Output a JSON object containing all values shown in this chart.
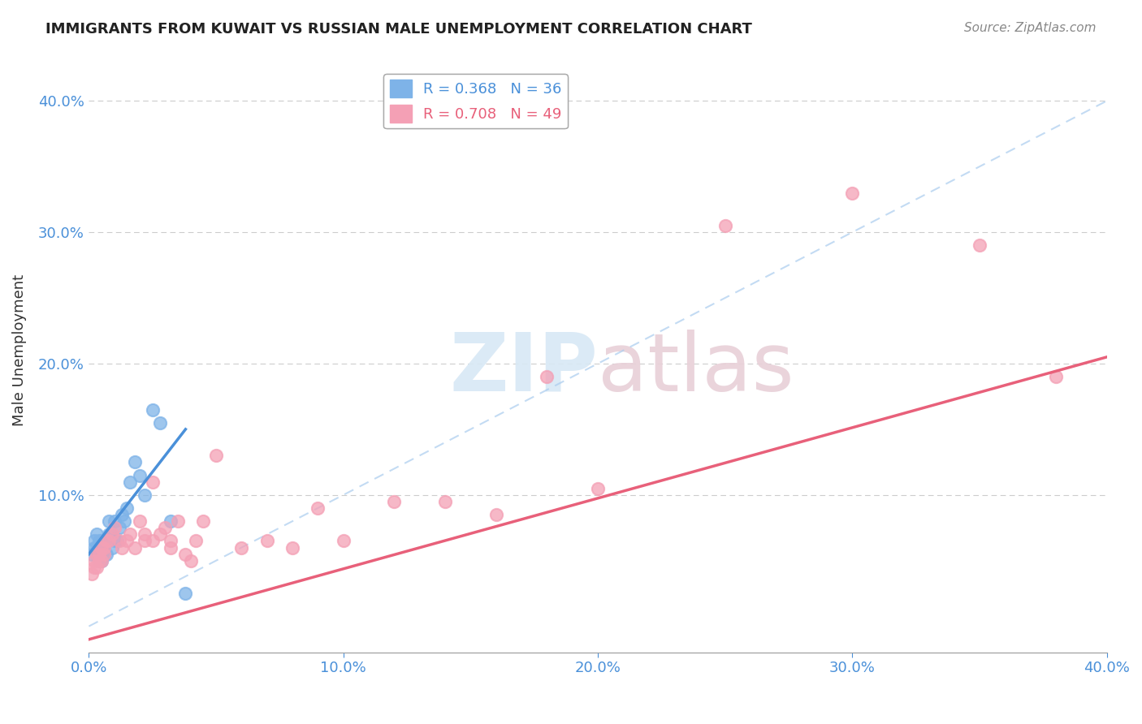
{
  "title": "IMMIGRANTS FROM KUWAIT VS RUSSIAN MALE UNEMPLOYMENT CORRELATION CHART",
  "source": "Source: ZipAtlas.com",
  "xlabel": "",
  "ylabel": "Male Unemployment",
  "xlim": [
    0.0,
    0.4
  ],
  "ylim": [
    -0.02,
    0.44
  ],
  "xticks": [
    0.0,
    0.1,
    0.2,
    0.3,
    0.4
  ],
  "yticks": [
    0.0,
    0.1,
    0.2,
    0.3,
    0.4
  ],
  "xtick_labels": [
    "0.0%",
    "10.0%",
    "20.0%",
    "30.0%",
    "40.0%"
  ],
  "ytick_labels": [
    "",
    "10.0%",
    "20.0%",
    "30.0%",
    "40.0%"
  ],
  "legend_entry1": "R = 0.368   N = 36",
  "legend_entry2": "R = 0.708   N = 49",
  "blue_color": "#7EB3E8",
  "pink_color": "#F4A0B5",
  "blue_line_color": "#4A90D9",
  "pink_line_color": "#E8607A",
  "watermark_zip": "ZIP",
  "watermark_atlas": "atlas",
  "kuwait_points_x": [
    0.001,
    0.002,
    0.002,
    0.003,
    0.003,
    0.003,
    0.004,
    0.004,
    0.004,
    0.005,
    0.005,
    0.005,
    0.005,
    0.006,
    0.006,
    0.007,
    0.007,
    0.008,
    0.008,
    0.009,
    0.009,
    0.01,
    0.01,
    0.011,
    0.012,
    0.013,
    0.014,
    0.015,
    0.016,
    0.018,
    0.02,
    0.022,
    0.025,
    0.028,
    0.032,
    0.038
  ],
  "kuwait_points_y": [
    0.055,
    0.06,
    0.065,
    0.055,
    0.06,
    0.07,
    0.05,
    0.055,
    0.065,
    0.05,
    0.055,
    0.06,
    0.065,
    0.055,
    0.06,
    0.055,
    0.065,
    0.07,
    0.08,
    0.06,
    0.07,
    0.065,
    0.08,
    0.065,
    0.075,
    0.085,
    0.08,
    0.09,
    0.11,
    0.125,
    0.115,
    0.1,
    0.165,
    0.155,
    0.08,
    0.025
  ],
  "russian_points_x": [
    0.001,
    0.002,
    0.002,
    0.003,
    0.003,
    0.004,
    0.004,
    0.005,
    0.005,
    0.006,
    0.006,
    0.007,
    0.008,
    0.009,
    0.01,
    0.012,
    0.013,
    0.015,
    0.016,
    0.018,
    0.02,
    0.022,
    0.022,
    0.025,
    0.025,
    0.028,
    0.03,
    0.032,
    0.032,
    0.035,
    0.038,
    0.04,
    0.042,
    0.045,
    0.05,
    0.06,
    0.07,
    0.08,
    0.09,
    0.1,
    0.12,
    0.14,
    0.16,
    0.18,
    0.2,
    0.25,
    0.3,
    0.35,
    0.38
  ],
  "russian_points_y": [
    0.04,
    0.045,
    0.05,
    0.045,
    0.055,
    0.05,
    0.055,
    0.05,
    0.06,
    0.055,
    0.06,
    0.065,
    0.065,
    0.07,
    0.075,
    0.065,
    0.06,
    0.065,
    0.07,
    0.06,
    0.08,
    0.065,
    0.07,
    0.065,
    0.11,
    0.07,
    0.075,
    0.065,
    0.06,
    0.08,
    0.055,
    0.05,
    0.065,
    0.08,
    0.13,
    0.06,
    0.065,
    0.06,
    0.09,
    0.065,
    0.095,
    0.095,
    0.085,
    0.19,
    0.105,
    0.305,
    0.33,
    0.29,
    0.19
  ],
  "blue_line_x": [
    0.0,
    0.038
  ],
  "blue_line_y": [
    0.055,
    0.15
  ],
  "pink_line_x": [
    0.0,
    0.4
  ],
  "pink_line_y": [
    -0.01,
    0.205
  ],
  "diag_line_x": [
    0.0,
    0.4
  ],
  "diag_line_y": [
    0.0,
    0.4
  ]
}
